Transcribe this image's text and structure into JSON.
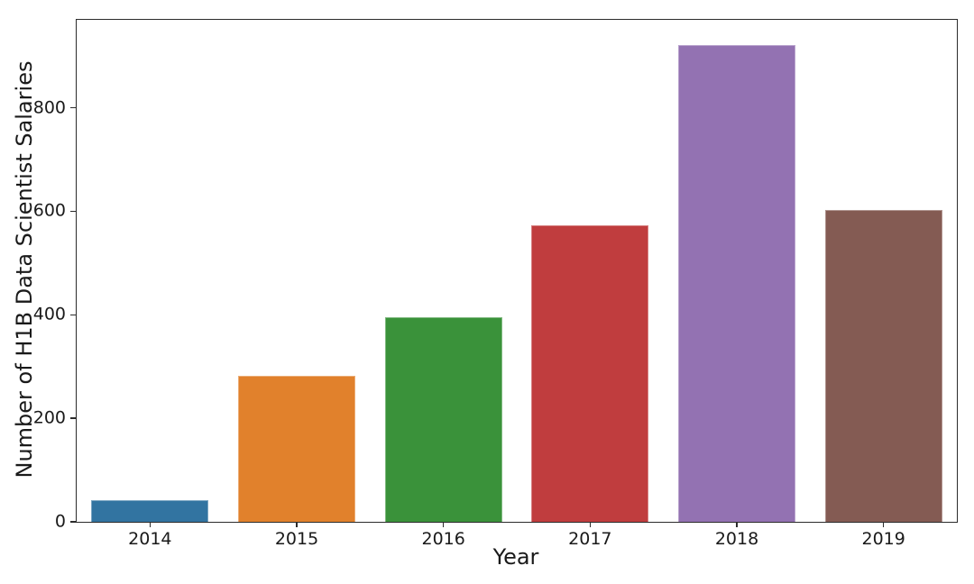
{
  "chart_data": {
    "type": "bar",
    "title": "",
    "xlabel": "Year",
    "ylabel": "Number of H1B Data Scientist Salaries",
    "categories": [
      "2014",
      "2015",
      "2016",
      "2017",
      "2018",
      "2019"
    ],
    "values": [
      42,
      282,
      395,
      573,
      922,
      603
    ],
    "bar_colors": [
      "#3274a1",
      "#e1812c",
      "#3a923a",
      "#c03d3e",
      "#9372b2",
      "#845b53"
    ],
    "yticks": [
      0,
      200,
      400,
      600,
      800
    ],
    "ylim": [
      0,
      970
    ],
    "grid": false,
    "legend": null,
    "background_color": "#ffffff",
    "axis_color": "#2b2b2b",
    "text_color": "#1a1a1a",
    "bar_width_fraction": 0.8
  }
}
